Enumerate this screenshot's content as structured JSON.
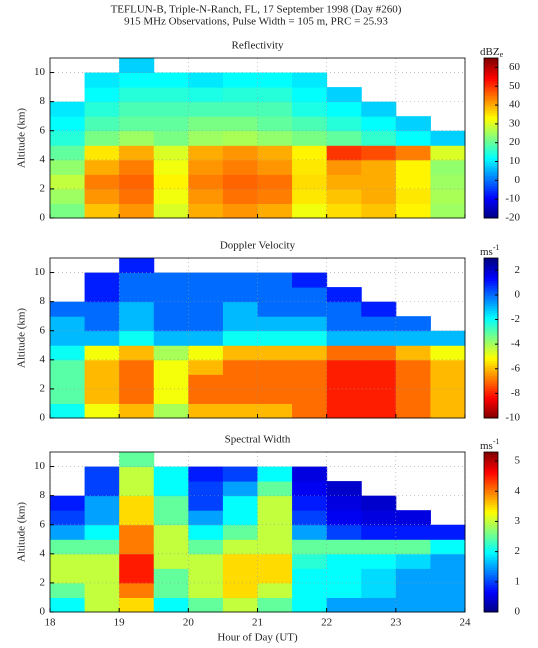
{
  "title": "TEFLUN-B, Triple-N-Ranch, FL, 17 September 1998 (Day #260)",
  "subtitle": "915 MHz Observations, Pulse Width = 105 m, PRC = 25.93",
  "chart_data": [
    {
      "type": "heatmap",
      "title": "Reflectivity",
      "ylabel": "Altitude (km)",
      "colorbar_label": "dBZ",
      "colorbar_label_sub": "e",
      "colormap": "jet",
      "clim": [
        -20,
        65
      ],
      "colorbar_ticks": [
        -20,
        -10,
        0,
        10,
        20,
        30,
        40,
        50,
        60
      ],
      "xlim": [
        18,
        24
      ],
      "xticks": [
        18,
        19,
        20,
        21,
        22,
        23,
        24
      ],
      "ylim": [
        0,
        11
      ],
      "yticks": [
        0,
        2,
        4,
        6,
        8,
        10
      ],
      "grid": true,
      "xbins": [
        18,
        18.5,
        19,
        19.5,
        20,
        20.5,
        21,
        21.5,
        22,
        22.5,
        23,
        23.5,
        24
      ],
      "ybins": [
        0,
        1,
        2,
        3,
        4,
        5,
        6,
        7,
        8,
        9,
        10,
        11
      ],
      "values": [
        [
          22,
          38,
          42,
          30,
          40,
          42,
          40,
          32,
          36,
          38,
          34,
          25
        ],
        [
          25,
          42,
          45,
          32,
          42,
          45,
          44,
          35,
          38,
          40,
          35,
          26
        ],
        [
          28,
          44,
          46,
          34,
          44,
          46,
          45,
          36,
          40,
          40,
          34,
          25
        ],
        [
          24,
          40,
          44,
          32,
          42,
          44,
          42,
          35,
          42,
          40,
          34,
          24
        ],
        [
          20,
          35,
          40,
          30,
          40,
          42,
          40,
          34,
          50,
          48,
          44,
          30
        ],
        [
          15,
          22,
          25,
          22,
          25,
          26,
          24,
          22,
          20,
          16,
          12,
          8
        ],
        [
          12,
          18,
          20,
          20,
          22,
          22,
          20,
          18,
          15,
          12,
          8,
          null
        ],
        [
          10,
          15,
          18,
          18,
          18,
          18,
          18,
          14,
          12,
          8,
          null,
          null
        ],
        [
          null,
          12,
          15,
          15,
          14,
          15,
          15,
          12,
          8,
          null,
          null,
          null
        ],
        [
          null,
          10,
          12,
          12,
          10,
          12,
          12,
          10,
          null,
          null,
          null,
          null
        ],
        [
          null,
          null,
          8,
          null,
          null,
          null,
          null,
          null,
          null,
          null,
          null,
          null
        ]
      ]
    },
    {
      "type": "heatmap",
      "title": "Doppler Velocity",
      "ylabel": "Altitude (km)",
      "colorbar_label": "ms",
      "colorbar_label_sup": "-1",
      "colormap": "jet_r",
      "clim": [
        -10,
        3
      ],
      "colorbar_ticks": [
        -10,
        -8,
        -6,
        -4,
        -2,
        0,
        2
      ],
      "xlim": [
        18,
        24
      ],
      "xticks": [
        18,
        19,
        20,
        21,
        22,
        23,
        24
      ],
      "ylim": [
        0,
        11
      ],
      "yticks": [
        0,
        2,
        4,
        6,
        8,
        10
      ],
      "grid": true,
      "xbins": [
        18,
        18.5,
        19,
        19.5,
        20,
        20.5,
        21,
        21.5,
        22,
        22.5,
        23,
        23.5,
        24
      ],
      "ybins": [
        0,
        1,
        2,
        3,
        4,
        5,
        6,
        7,
        8,
        9,
        10,
        11
      ],
      "values": [
        [
          -2,
          -5,
          -6,
          -4,
          -6,
          -6,
          -6,
          -7,
          -8,
          -8,
          -7,
          -6
        ],
        [
          -3,
          -6,
          -7,
          -5,
          -7,
          -7,
          -7,
          -7,
          -8,
          -8,
          -7,
          -6
        ],
        [
          -3,
          -6,
          -7,
          -5,
          -7,
          -7,
          -7,
          -7,
          -8,
          -8,
          -7,
          -6
        ],
        [
          -3,
          -6,
          -7,
          -5,
          -6,
          -7,
          -7,
          -7,
          -8,
          -8,
          -7,
          -6
        ],
        [
          -2,
          -5,
          -6,
          -4,
          -5,
          -6,
          -6,
          -6,
          -7,
          -7,
          -6,
          -5
        ],
        [
          -1,
          -1,
          -2,
          -1,
          -1,
          -2,
          -2,
          -2,
          -1,
          -1,
          -1,
          -1
        ],
        [
          -1,
          0,
          -1,
          0,
          0,
          -1,
          -1,
          -1,
          0,
          0,
          0,
          null
        ],
        [
          0,
          0,
          -1,
          0,
          0,
          -1,
          0,
          0,
          0,
          1,
          null,
          null
        ],
        [
          null,
          1,
          0,
          0,
          0,
          0,
          0,
          0,
          1,
          null,
          null,
          null
        ],
        [
          null,
          1,
          0,
          0,
          0,
          0,
          0,
          1,
          null,
          null,
          null,
          null
        ],
        [
          null,
          null,
          1,
          null,
          null,
          null,
          null,
          null,
          null,
          null,
          null,
          null
        ]
      ]
    },
    {
      "type": "heatmap",
      "title": "Spectral Width",
      "ylabel": "Altitude (km)",
      "xlabel": "Hour of Day (UT)",
      "colorbar_label": "ms",
      "colorbar_label_sup": "-1",
      "colormap": "jet",
      "clim": [
        0,
        5.3
      ],
      "colorbar_ticks": [
        0,
        1,
        2,
        3,
        4,
        5
      ],
      "xlim": [
        18,
        24
      ],
      "xticks": [
        18,
        19,
        20,
        21,
        22,
        23,
        24
      ],
      "ylim": [
        0,
        11
      ],
      "yticks": [
        0,
        2,
        4,
        6,
        8,
        10
      ],
      "grid": true,
      "xbins": [
        18,
        18.5,
        19,
        19.5,
        20,
        20.5,
        21,
        21.5,
        22,
        22.5,
        23,
        23.5,
        24
      ],
      "ybins": [
        0,
        1,
        2,
        3,
        4,
        5,
        6,
        7,
        8,
        9,
        10,
        11
      ],
      "values": [
        [
          2,
          3,
          3.5,
          2,
          2.5,
          3,
          2.5,
          2,
          1.5,
          1.5,
          1.5,
          1.5
        ],
        [
          2.5,
          3,
          4,
          2.5,
          3,
          3.5,
          3,
          2,
          2,
          1.8,
          1.5,
          1.5
        ],
        [
          3,
          3,
          4.5,
          2.5,
          3,
          3.5,
          3.5,
          2,
          2,
          1.8,
          1.5,
          1.5
        ],
        [
          3,
          3,
          4.5,
          3,
          3,
          3.5,
          3.5,
          2.2,
          2,
          2,
          1.8,
          1.5
        ],
        [
          2.5,
          2.5,
          4,
          3,
          2.5,
          3,
          3,
          2.5,
          2.5,
          2.5,
          2.5,
          2
        ],
        [
          1.5,
          2,
          4,
          3,
          2,
          2.5,
          3,
          1.5,
          1,
          0.8,
          0.8,
          0.8
        ],
        [
          1,
          1.5,
          3.5,
          2.5,
          1.5,
          2,
          3,
          1,
          0.6,
          0.5,
          0.5,
          null
        ],
        [
          0.8,
          1.5,
          3.5,
          2.5,
          1,
          2,
          3,
          0.8,
          0.5,
          0.4,
          null,
          null
        ],
        [
          null,
          1,
          3,
          2,
          1,
          1.5,
          2.5,
          0.6,
          0.4,
          null,
          null,
          null
        ],
        [
          null,
          1,
          3,
          2,
          0.8,
          1,
          2,
          0.5,
          null,
          null,
          null,
          null
        ],
        [
          null,
          null,
          2.5,
          null,
          null,
          null,
          null,
          null,
          null,
          null,
          null,
          null
        ]
      ]
    }
  ]
}
